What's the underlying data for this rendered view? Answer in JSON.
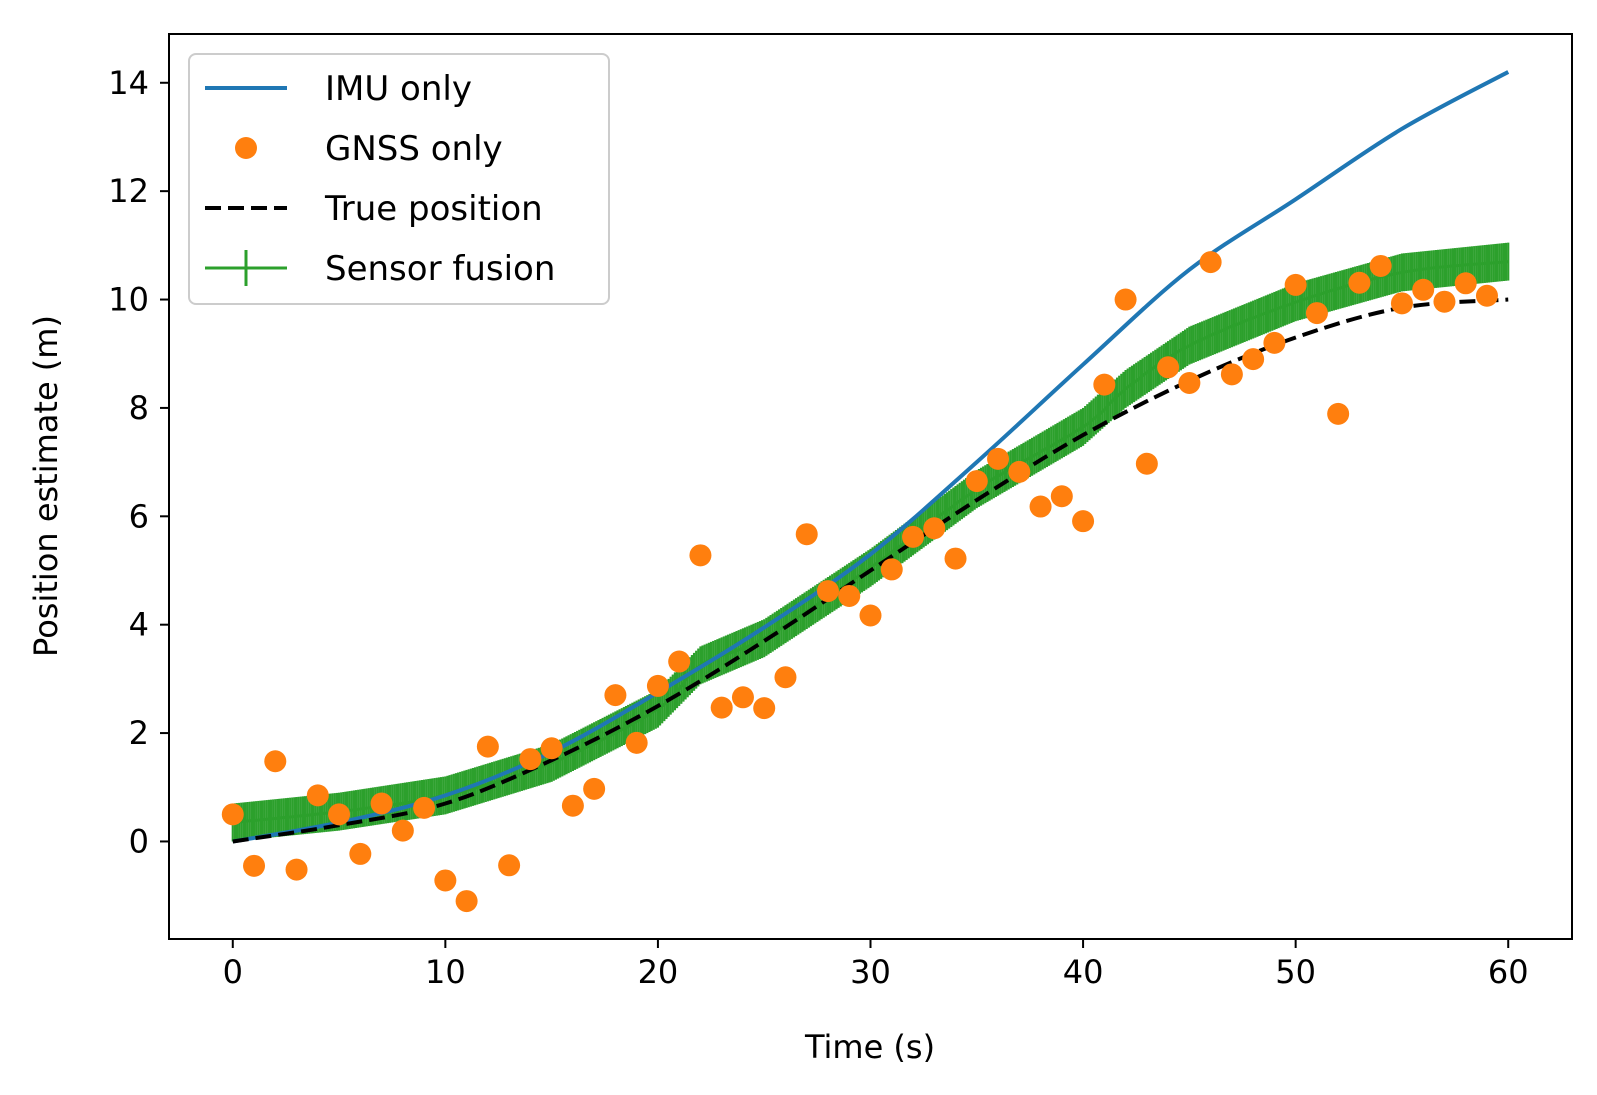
{
  "chart_data": {
    "type": "line",
    "title": "",
    "xlabel": "Time (s)",
    "ylabel": "Position estimate (m)",
    "xlim": [
      -3,
      63
    ],
    "ylim": [
      -1.8,
      14.9
    ],
    "xticks": [
      0,
      10,
      20,
      30,
      40,
      50,
      60
    ],
    "yticks": [
      0,
      2,
      4,
      6,
      8,
      10,
      12,
      14
    ],
    "grid": false,
    "legend_position": "top-left",
    "colors": {
      "imu": "#1f77b4",
      "gnss": "#ff7f0e",
      "true": "#000000",
      "fusion": "#2ca02c"
    },
    "series": [
      {
        "name": "IMU only",
        "style": "solid-line",
        "x": [
          0,
          5,
          10,
          15,
          20,
          25,
          30,
          35,
          40,
          45,
          50,
          55,
          60
        ],
        "y": [
          0.0,
          0.35,
          0.85,
          1.65,
          2.75,
          3.95,
          5.3,
          7.0,
          8.8,
          10.55,
          11.85,
          13.15,
          14.2
        ]
      },
      {
        "name": "GNSS only",
        "style": "markers",
        "x": [
          0,
          1,
          2,
          3,
          4,
          5,
          6,
          7,
          8,
          9,
          10,
          11,
          12,
          13,
          14,
          15,
          16,
          17,
          18,
          19,
          20,
          21,
          22,
          23,
          24,
          25,
          26,
          27,
          28,
          29,
          30,
          31,
          32,
          33,
          34,
          35,
          36,
          37,
          38,
          39,
          40,
          41,
          42,
          43,
          44,
          45,
          46,
          47,
          48,
          49,
          50,
          51,
          52,
          53,
          54,
          55,
          56,
          57,
          58,
          59
        ],
        "y": [
          0.5,
          -0.45,
          1.48,
          -0.52,
          0.85,
          0.5,
          -0.23,
          0.7,
          0.2,
          0.62,
          -0.72,
          -1.1,
          1.75,
          -0.44,
          1.52,
          1.72,
          0.66,
          0.97,
          2.7,
          1.82,
          2.87,
          3.32,
          5.28,
          2.47,
          2.66,
          2.46,
          3.03,
          5.67,
          4.62,
          4.53,
          4.17,
          5.02,
          5.62,
          5.78,
          5.22,
          6.65,
          7.06,
          6.82,
          6.18,
          6.37,
          5.91,
          8.43,
          10.0,
          6.97,
          8.75,
          8.46,
          10.69,
          8.62,
          8.9,
          9.2,
          10.27,
          9.75,
          7.89,
          10.31,
          10.62,
          9.93,
          10.18,
          9.96,
          10.3,
          10.07
        ]
      },
      {
        "name": "True position",
        "style": "dashed-line",
        "x": [
          0,
          5,
          10,
          15,
          20,
          25,
          30,
          35,
          40,
          45,
          50,
          55,
          60
        ],
        "y": [
          0.0,
          0.3,
          0.7,
          1.5,
          2.5,
          3.7,
          5.0,
          6.3,
          7.5,
          8.5,
          9.3,
          9.85,
          10.0
        ]
      },
      {
        "name": "Sensor fusion",
        "style": "line-with-errorbars",
        "x": [
          0,
          5,
          10,
          15,
          20,
          22,
          25,
          30,
          35,
          40,
          42,
          45,
          50,
          55,
          60
        ],
        "y": [
          0.35,
          0.55,
          0.85,
          1.45,
          2.45,
          3.25,
          3.75,
          5.05,
          6.5,
          7.65,
          8.35,
          9.15,
          9.95,
          10.5,
          10.7
        ],
        "error": 0.35
      }
    ]
  }
}
